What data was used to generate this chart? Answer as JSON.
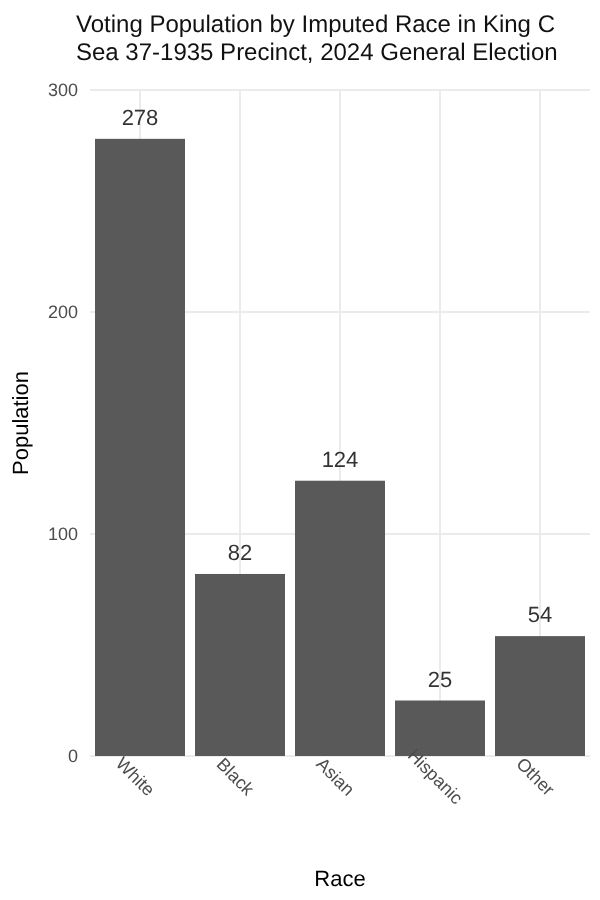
{
  "chart_data": {
    "type": "bar",
    "title": "Voting Population by Imputed Race in King C",
    "subtitle": "Sea 37-1935 Precinct,  2024 General Election",
    "xlabel": "Race",
    "ylabel": "Population",
    "categories": [
      "White",
      "Black",
      "Asian",
      "Hispanic",
      "Other"
    ],
    "values": [
      278,
      82,
      124,
      25,
      54
    ],
    "color": "#595959",
    "data_labels": true,
    "ylim": [
      0,
      300
    ],
    "yticks": [
      0,
      100,
      200,
      300
    ],
    "grid": true
  }
}
